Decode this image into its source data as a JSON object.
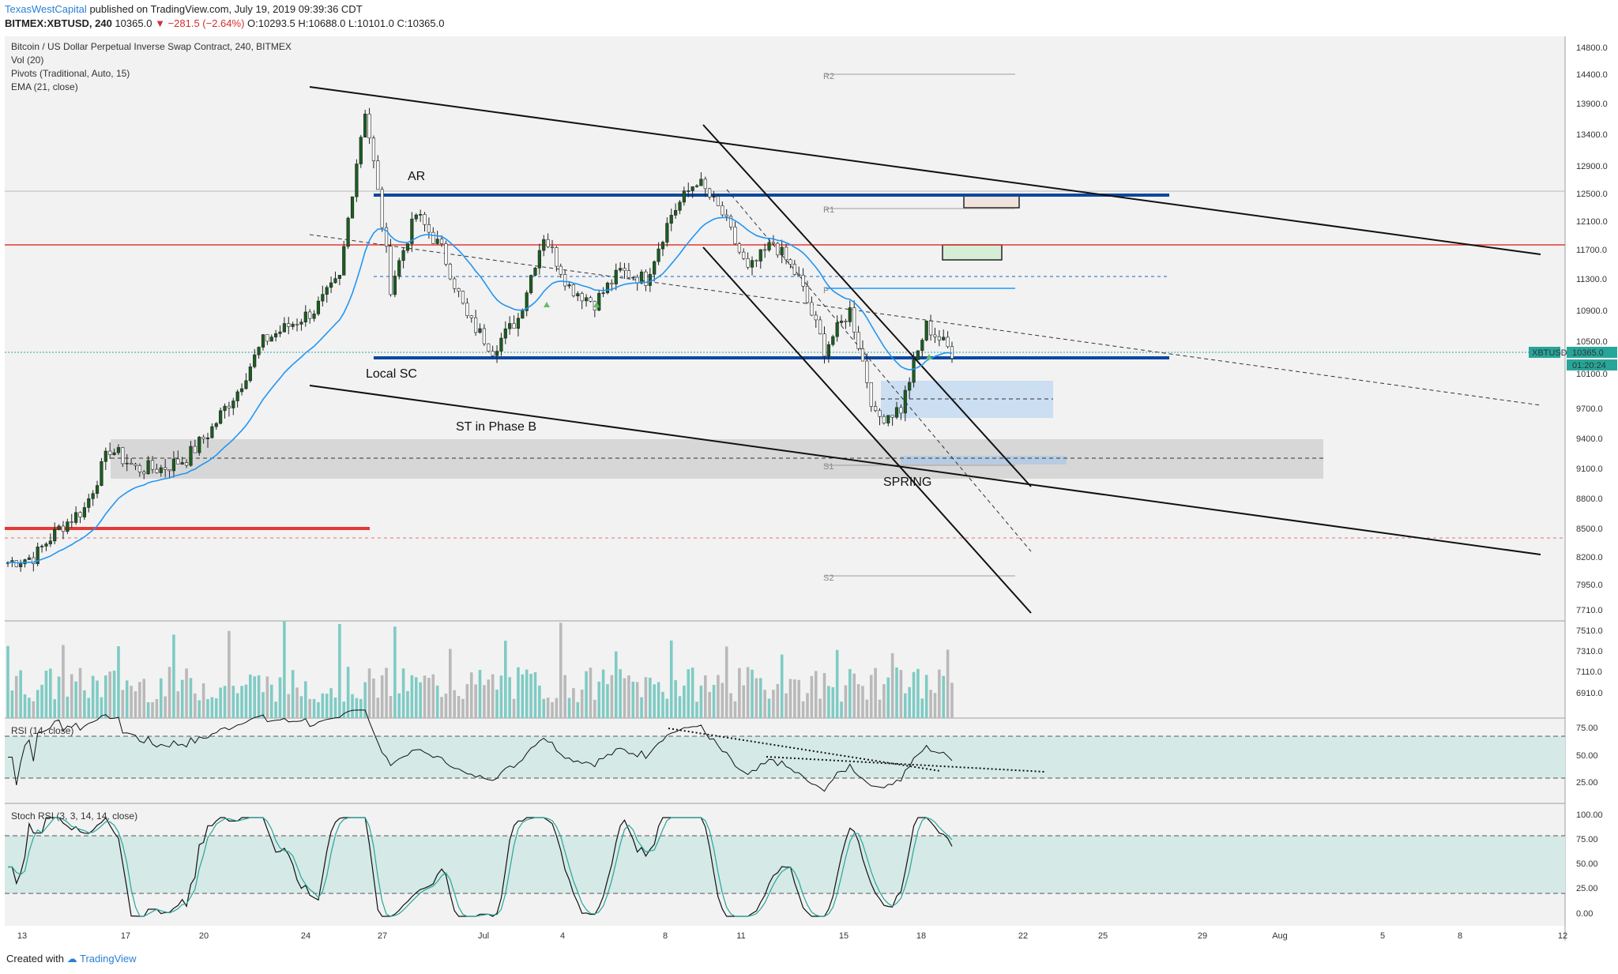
{
  "header": {
    "author": "TexasWestCapital",
    "published": "published on TradingView.com, July 19, 2019 09:39:36 CDT",
    "symbol": "BITMEX:XBTUSD, 240",
    "last": "10365.0",
    "change": "−281.5 (−2.64%)",
    "open": "O:10293.5",
    "high": "H:10688.0",
    "low": "L:10101.0",
    "close": "C:10365.0"
  },
  "footer": {
    "created": "Created with",
    "brand": "TradingView"
  },
  "legend": {
    "title": "Bitcoin / US Dollar Perpetual Inverse Swap Contract, 240, BITMEX",
    "vol": "Vol (20)",
    "pivots": "Pivots (Traditional, Auto, 15)",
    "ema": "EMA (21, close)",
    "rsi": "RSI (14, close)",
    "stoch": "Stoch RSI (3, 3, 14, 14, close)"
  },
  "price_tag": {
    "symbol": "XBTUSD",
    "value": "10365.0",
    "countdown": "01:20:24"
  },
  "colors": {
    "bull": "#26a69a",
    "bear": "#ef5350",
    "candle_body": "#1b5e20",
    "ema": "#2196f3",
    "support_line": "#0d47a1",
    "red_line": "#e53935",
    "vol_bull": "#7fcbc4",
    "vol_bear": "#b9b9b9",
    "band": "#d5e9e6"
  },
  "annotations": {
    "ar": "AR",
    "local_sc": "Local SC",
    "st_phase_b": "ST in Phase B",
    "spring": "SPRING"
  },
  "pivots": {
    "r2": "R2",
    "r1": "R1",
    "p": "P",
    "s1": "S1",
    "s2": "S2"
  },
  "chart_data": {
    "type": "candlestick",
    "title": "Bitcoin / US Dollar Perpetual Inverse Swap Contract, 240, BITMEX",
    "interval": "240",
    "x_tick_labels": [
      "13",
      "17",
      "20",
      "24",
      "27",
      "Jul",
      "4",
      "8",
      "11",
      "15",
      "18",
      "22",
      "25",
      "29",
      "Aug",
      "5",
      "8",
      "12"
    ],
    "price_axis_ticks": [
      14800.0,
      14400.0,
      13900.0,
      13400.0,
      12900.0,
      12500.0,
      12100.0,
      11700.0,
      11300.0,
      10900.0,
      10500.0,
      10100.0,
      9700.0,
      9400.0,
      9100.0,
      8800.0,
      8500.0,
      8200.0,
      7950.0,
      7710.0,
      7510.0,
      7310.0,
      7110.0,
      6910.0
    ],
    "rsi_ticks": [
      75.0,
      50.0,
      25.0
    ],
    "stoch_ticks": [
      100.0,
      75.0,
      50.0,
      25.0,
      0.0
    ],
    "last_price": 10365.0,
    "horizontal_levels": {
      "resistance_blue": 12500,
      "support_blue": 10300,
      "red_line": 11760,
      "red_line_low": 8420,
      "dashed_red": 8340,
      "dashed_blue": 11350,
      "dashed_gray": 9160
    },
    "price_series_approx": [
      {
        "d": "Jun 12",
        "p": 8150
      },
      {
        "d": "Jun 13",
        "p": 8200
      },
      {
        "d": "Jun 14",
        "p": 8500
      },
      {
        "d": "Jun 15",
        "p": 8700
      },
      {
        "d": "Jun 16",
        "p": 9300
      },
      {
        "d": "Jun 17",
        "p": 9100
      },
      {
        "d": "Jun 18",
        "p": 9100
      },
      {
        "d": "Jun 19",
        "p": 9200
      },
      {
        "d": "Jun 20",
        "p": 9500
      },
      {
        "d": "Jun 21",
        "p": 9900
      },
      {
        "d": "Jun 22",
        "p": 10500
      },
      {
        "d": "Jun 23",
        "p": 10700
      },
      {
        "d": "Jun 24",
        "p": 10900
      },
      {
        "d": "Jun 25",
        "p": 11300
      },
      {
        "d": "Jun 26",
        "p": 13800
      },
      {
        "d": "Jun 27",
        "p": 11200
      },
      {
        "d": "Jun 28",
        "p": 12200
      },
      {
        "d": "Jun 29",
        "p": 11700
      },
      {
        "d": "Jun 30",
        "p": 10800
      },
      {
        "d": "Jul 1",
        "p": 10400
      },
      {
        "d": "Jul 2",
        "p": 10800
      },
      {
        "d": "Jul 3",
        "p": 11900
      },
      {
        "d": "Jul 4",
        "p": 11200
      },
      {
        "d": "Jul 5",
        "p": 11000
      },
      {
        "d": "Jul 6",
        "p": 11400
      },
      {
        "d": "Jul 7",
        "p": 11300
      },
      {
        "d": "Jul 8",
        "p": 12200
      },
      {
        "d": "Jul 9",
        "p": 12700
      },
      {
        "d": "Jul 10",
        "p": 12200
      },
      {
        "d": "Jul 11",
        "p": 11400
      },
      {
        "d": "Jul 12",
        "p": 11800
      },
      {
        "d": "Jul 13",
        "p": 11300
      },
      {
        "d": "Jul 14",
        "p": 10400
      },
      {
        "d": "Jul 15",
        "p": 10900
      },
      {
        "d": "Jul 16",
        "p": 9600
      },
      {
        "d": "Jul 17",
        "p": 9700
      },
      {
        "d": "Jul 18",
        "p": 10700
      },
      {
        "d": "Jul 19",
        "p": 10365
      }
    ],
    "xlabel": "",
    "ylabel": ""
  }
}
